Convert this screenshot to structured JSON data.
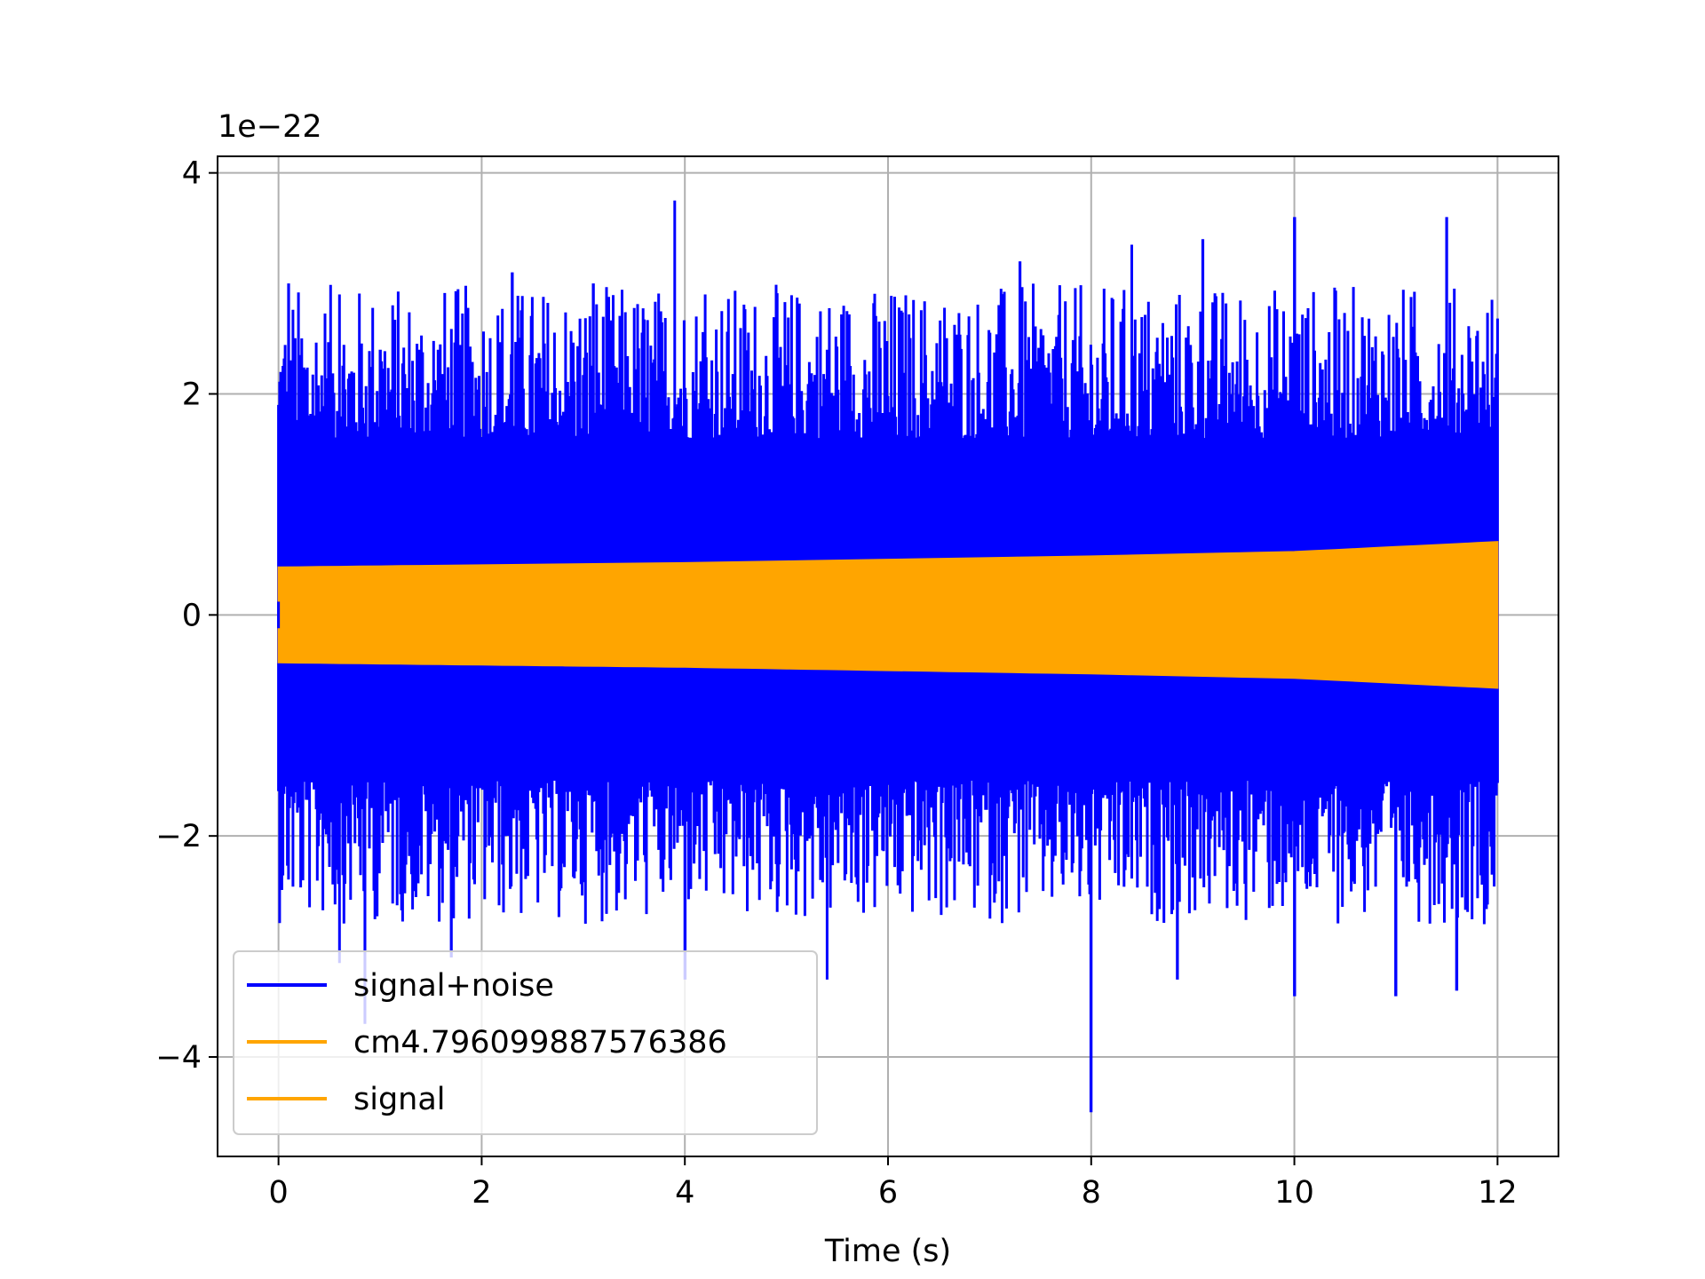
{
  "chart_data": {
    "type": "line",
    "title": "",
    "xlabel": "Time (s)",
    "ylabel": "",
    "y_scale_multiplier": "1e−22",
    "xlim": [
      -0.6,
      12.6
    ],
    "ylim": [
      -4.9,
      4.15
    ],
    "x_ticks": [
      0,
      2,
      4,
      6,
      8,
      10,
      12
    ],
    "x_tick_labels": [
      "0",
      "2",
      "4",
      "6",
      "8",
      "10",
      "12"
    ],
    "y_ticks": [
      -4,
      -2,
      0,
      2,
      4
    ],
    "y_tick_labels": [
      "−4",
      "−2",
      "0",
      "2",
      "4"
    ],
    "grid": true,
    "legend_position": "lower-left",
    "series": [
      {
        "name": "signal+noise",
        "color": "#0000ff",
        "x_range": [
          0,
          12
        ],
        "typical_band": [
          -1.5,
          1.6
        ],
        "peaks": [
          {
            "x": 0.0,
            "y": 1.9
          },
          {
            "x": 0.1,
            "y": 3.0
          },
          {
            "x": 0.6,
            "y": 2.9
          },
          {
            "x": 1.0,
            "y": 2.4
          },
          {
            "x": 2.3,
            "y": 3.1
          },
          {
            "x": 3.1,
            "y": 3.0
          },
          {
            "x": 3.9,
            "y": 3.75
          },
          {
            "x": 4.2,
            "y": 2.9
          },
          {
            "x": 5.4,
            "y": 2.4
          },
          {
            "x": 7.3,
            "y": 3.2
          },
          {
            "x": 8.4,
            "y": 3.35
          },
          {
            "x": 9.1,
            "y": 3.4
          },
          {
            "x": 10.0,
            "y": 3.6
          },
          {
            "x": 11.5,
            "y": 3.6
          }
        ],
        "troughs": [
          {
            "x": 0.6,
            "y": -3.15
          },
          {
            "x": 0.85,
            "y": -3.7
          },
          {
            "x": 1.7,
            "y": -3.1
          },
          {
            "x": 4.0,
            "y": -3.3
          },
          {
            "x": 5.4,
            "y": -3.3
          },
          {
            "x": 8.0,
            "y": -4.5
          },
          {
            "x": 8.85,
            "y": -3.3
          },
          {
            "x": 10.0,
            "y": -3.45
          },
          {
            "x": 11.0,
            "y": -3.45
          },
          {
            "x": 11.6,
            "y": -3.4
          }
        ]
      },
      {
        "name": "cm4.796099887576386",
        "color": "#ffa500",
        "envelope": {
          "x": [
            0,
            4,
            8,
            10,
            12
          ],
          "amplitude": [
            0.43,
            0.47,
            0.53,
            0.57,
            0.66
          ]
        }
      },
      {
        "name": "signal",
        "color": "#ffa500",
        "envelope": {
          "x": [
            0,
            4,
            8,
            10,
            12
          ],
          "amplitude": [
            0.43,
            0.47,
            0.53,
            0.57,
            0.66
          ]
        }
      }
    ]
  }
}
